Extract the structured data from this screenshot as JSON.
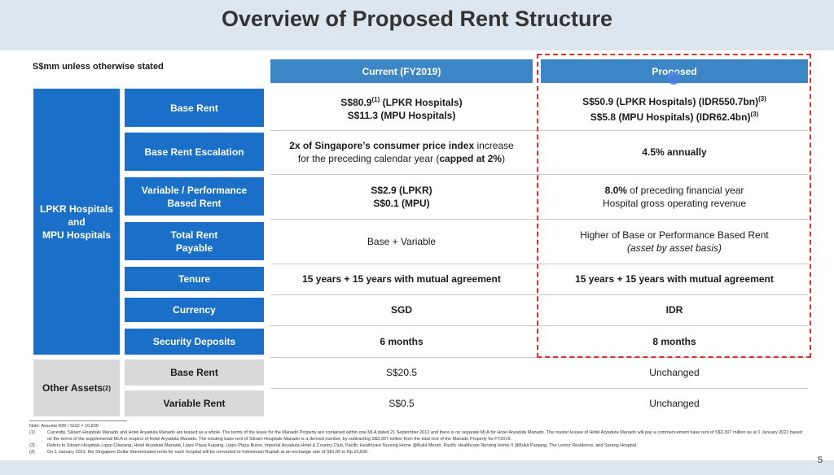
{
  "title": "Overview of Proposed Rent Structure",
  "unit_note": "S$mm unless otherwise stated",
  "columns": {
    "current": "Current (FY2019)",
    "proposed": "Proposed"
  },
  "group_lpkr": "LPKR Hospitals\nand\nMPU Hospitals",
  "group_other": {
    "text": "Other Assets",
    "sup": "(2)"
  },
  "rows": {
    "base_rent": {
      "label": "Base Rent",
      "current_l1": "S$80.9",
      "current_l1_sup": "(1)",
      "current_l1_rest": " (LPKR Hospitals)",
      "current_l2": "S$11.3 (MPU Hospitals)",
      "proposed_l1": "S$50.9 (LPKR Hospitals) (IDR550.7bn)",
      "proposed_l1_sup": "(3)",
      "proposed_l2": "S$5.8 (MPU Hospitals) (IDR62.4bn)",
      "proposed_l2_sup": "(3)"
    },
    "escalation": {
      "label": "Base Rent Escalation",
      "current_a": "2x of Singapore’s consumer price index",
      "current_b": " increase",
      "current_c": "for the preceding calendar year (",
      "current_d": "capped at 2%",
      "current_e": ")",
      "proposed": "4.5% annually"
    },
    "variable": {
      "label": "Variable / Performance\nBased Rent",
      "current_l1": "S$2.9 (LPKR)",
      "current_l2": "S$0.1 (MPU)",
      "proposed_a": "8.0%",
      "proposed_b": " of preceding financial year",
      "proposed_l2": "Hospital gross operating revenue"
    },
    "total": {
      "label": "Total Rent\nPayable",
      "current": "Base + Variable",
      "proposed_l1": "Higher of Base or Performance Based Rent",
      "proposed_l2": "(asset by asset basis)"
    },
    "tenure": {
      "label": "Tenure",
      "current": "15 years + 15 years with mutual agreement",
      "proposed": "15 years + 15 years with mutual agreement"
    },
    "currency": {
      "label": "Currency",
      "current": "SGD",
      "proposed": "IDR"
    },
    "deposits": {
      "label": "Security Deposits",
      "current": "6 months",
      "proposed": "8 months"
    },
    "other_base": {
      "label": "Base Rent",
      "current": "S$20.5",
      "proposed": "Unchanged"
    },
    "other_variable": {
      "label": "Variable Rent",
      "current": "S$0.5",
      "proposed": "Unchanged"
    }
  },
  "footnotes": {
    "note": "Note: Assume IDR / SGD = 10,830",
    "items": [
      {
        "n": "(1)",
        "text": "Currently, Siloam Hospitals Manado and Hotel Aryaduta Manado are leased as a whole. The terms of the lease for the Manado Property are contained within one MLA dated 21 September 2012 and there is no separate MLA for Hotel Aryaduta Manado. The master lessee of Hotel Aryaduta Manado will pay a commencement base rent of S$3.307 million as at 1 January 2021 based on the terms of the supplemental MLA in respect of Hotel Aryaduta Manado. The existing base rent of Siloam Hospitals Manado is a derived number, by subtracting S$3.307 million from the total rent of the Manado Property for FY2019."
      },
      {
        "n": "(2)",
        "text": "Refers to Siloam Hospitals Lippo Cikarang, Hotel Aryaduta Manado, Lippo Plaza Kupang, Lippo Plaza Buton, Imperial Aryaduta Hotel & Country Club, Pacific Healthcare Nursing Home @Bukit Merah, Pacific Healthcare Nursing Home II @Bukit Panjang, The Lentor Residence, and Sarang Hospital."
      },
      {
        "n": "(3)",
        "text": "On 1 January 2021, the Singapore Dollar denominated rents for each hospital will be converted to Indonesian Rupiah at an exchange rate of S$1.00 to Rp.10,830."
      }
    ]
  },
  "page_number": "5"
}
